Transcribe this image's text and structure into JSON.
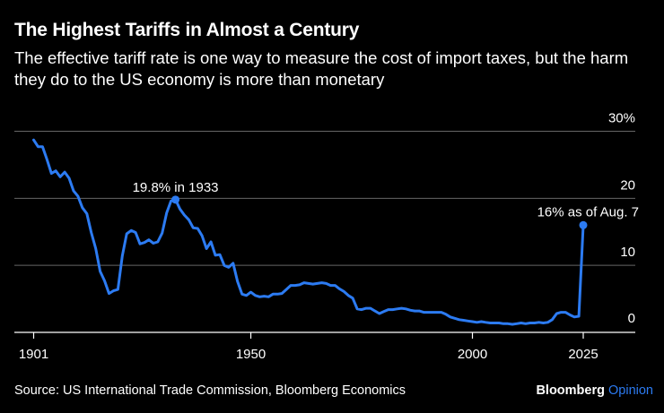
{
  "header": {
    "title": "The Highest Tariffs in Almost a Century",
    "subtitle": "The effective tariff rate is one way to measure the cost of import taxes, but the harm they do to the US economy is more than monetary"
  },
  "footer": {
    "source": "Source: US International Trade Commission, Bloomberg Economics",
    "brand_name": "Bloomberg",
    "brand_suffix": "Opinion"
  },
  "colors": {
    "line": "#2c7bf2",
    "background": "#000000",
    "grid": "#666666",
    "text": "#ffffff"
  },
  "chart_data": {
    "type": "line",
    "title": "The Highest Tariffs in Almost a Century",
    "xlabel": "",
    "ylabel": "",
    "xlim": [
      1901,
      2025
    ],
    "ylim": [
      0,
      30
    ],
    "x_ticks": [
      1901,
      1950,
      2000,
      2025
    ],
    "y_ticks": [
      0,
      10,
      20,
      30
    ],
    "y_tick_labels": [
      "0",
      "10",
      "20",
      "30%"
    ],
    "grid": true,
    "series": [
      {
        "name": "Effective tariff rate",
        "x": [
          1901,
          1902,
          1903,
          1904,
          1905,
          1906,
          1907,
          1908,
          1909,
          1910,
          1911,
          1912,
          1913,
          1914,
          1915,
          1916,
          1917,
          1918,
          1919,
          1920,
          1921,
          1922,
          1923,
          1924,
          1925,
          1926,
          1927,
          1928,
          1929,
          1930,
          1931,
          1932,
          1933,
          1934,
          1935,
          1936,
          1937,
          1938,
          1939,
          1940,
          1941,
          1942,
          1943,
          1944,
          1945,
          1946,
          1947,
          1948,
          1949,
          1950,
          1951,
          1952,
          1953,
          1954,
          1955,
          1956,
          1957,
          1958,
          1959,
          1960,
          1961,
          1962,
          1963,
          1964,
          1965,
          1966,
          1967,
          1968,
          1969,
          1970,
          1971,
          1972,
          1973,
          1974,
          1975,
          1976,
          1977,
          1978,
          1979,
          1980,
          1981,
          1982,
          1983,
          1984,
          1985,
          1986,
          1987,
          1988,
          1989,
          1990,
          1991,
          1992,
          1993,
          1994,
          1995,
          1996,
          1997,
          1998,
          1999,
          2000,
          2001,
          2002,
          2003,
          2004,
          2005,
          2006,
          2007,
          2008,
          2009,
          2010,
          2011,
          2012,
          2013,
          2014,
          2015,
          2016,
          2017,
          2018,
          2019,
          2020,
          2021,
          2022,
          2023,
          2024,
          2025
        ],
        "values": [
          28.7,
          27.7,
          27.7,
          25.8,
          23.7,
          24.1,
          23.2,
          23.9,
          23.0,
          21.1,
          20.3,
          18.6,
          17.7,
          14.9,
          12.5,
          9.1,
          7.7,
          5.8,
          6.2,
          6.4,
          11.4,
          14.7,
          15.2,
          14.9,
          13.2,
          13.4,
          13.8,
          13.3,
          13.5,
          14.8,
          17.8,
          19.6,
          19.8,
          18.4,
          17.5,
          16.8,
          15.6,
          15.5,
          14.4,
          12.5,
          13.5,
          11.5,
          11.6,
          10.0,
          9.7,
          10.3,
          7.6,
          5.7,
          5.5,
          6.0,
          5.5,
          5.3,
          5.4,
          5.3,
          5.7,
          5.7,
          5.8,
          6.4,
          7.0,
          7.0,
          7.1,
          7.4,
          7.3,
          7.2,
          7.3,
          7.4,
          7.3,
          7.0,
          7.0,
          6.5,
          6.1,
          5.5,
          5.1,
          3.5,
          3.4,
          3.6,
          3.6,
          3.2,
          2.8,
          3.1,
          3.4,
          3.4,
          3.5,
          3.6,
          3.5,
          3.3,
          3.2,
          3.2,
          3.0,
          3.0,
          3.0,
          3.0,
          3.0,
          2.7,
          2.3,
          2.1,
          1.9,
          1.8,
          1.7,
          1.6,
          1.5,
          1.6,
          1.5,
          1.4,
          1.4,
          1.4,
          1.3,
          1.3,
          1.2,
          1.3,
          1.4,
          1.3,
          1.4,
          1.4,
          1.5,
          1.4,
          1.5,
          1.9,
          2.8,
          3.0,
          3.0,
          2.6,
          2.3,
          2.4,
          16.0
        ]
      }
    ],
    "annotations": [
      {
        "text": "19.8% in 1933",
        "x": 1933,
        "y": 19.8
      },
      {
        "text": "16% as of Aug. 7",
        "x": 2025,
        "y": 16.0
      }
    ]
  }
}
